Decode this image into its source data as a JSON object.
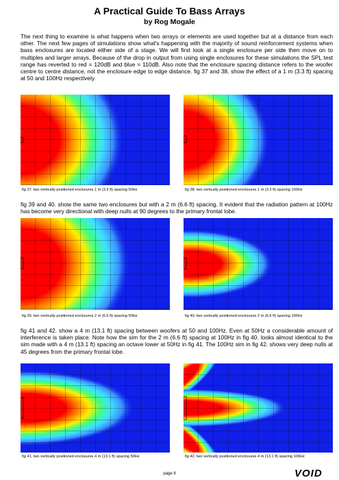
{
  "header": {
    "title": "A Practical Guide To Bass Arrays",
    "author": "by Rog Mogale"
  },
  "paragraphs": [
    "The next thing to examine is what happens when two arrays or elements are used together but at a distance from each other. The next few pages of simulations show what's happening with the majority of sound reinforcement systems when bass enclosures are located either side of a stage. We will first look at a single enclosure per side then move on to multiples and larger arrays. Because of the drop in output from using single enclosures for these simulations the SPL test range has reverted to red = 120dB and blue = 110dB. Also note that the enclosure spacing distance refers to the woofer centre to centre distance, not the enclosure edge to edge distance. fig 37 and 38. show the effect of a 1 m (3.3 ft) spacing at 50 and 100Hz respectively.",
    "fig 39 and 40. show the same two enclosures but with a 2 m (6.6 ft) spacing. It evident that the radiation pattern at 100Hz has become very directional with deep nulls at 90 degrees to the primary frontal lobe.",
    "fig 41 and 42. show a 4 m (13.1 ft) spacing between woofers at 50 and 100Hz. Even at 50Hz a considerable amount of interference is taken place. Note how the sim for the 2 m (6.6 ft) spacing at 100Hz in fig 40. looks almost identical to the sim made with a 4 m (13.1 ft) spacing an octave lower at 50Hz in fig 41. The 100Hz sim in fig 42. shows very deep nulls at 45 degrees from the primary frontal lobe."
  ],
  "figures": [
    {
      "caption": "fig 37. two vertically positioned enclosures 1 m (3.3 ft) spacing 50Hz"
    },
    {
      "caption": "fig 38. two vertically positioned enclosures 1 m (3.3 ft) spacing 100Hz"
    },
    {
      "caption": "fig 39. two vertically positioned enclosures 2 m (6.6 ft) spacing 50Hz"
    },
    {
      "caption": "fig 40. two vertically positioned enclosures 2 m (6.6 ft) spacing 100Hz"
    },
    {
      "caption": "fig 41. two vertically positioned enclosures 4 m (13.1 ft) spacing 50Hz"
    },
    {
      "caption": "fig 42. two vertically positioned enclosures 4 m (13.1 ft) spacing 100Hz"
    }
  ],
  "footer": {
    "page": "page 8",
    "logo": "VOID"
  }
}
